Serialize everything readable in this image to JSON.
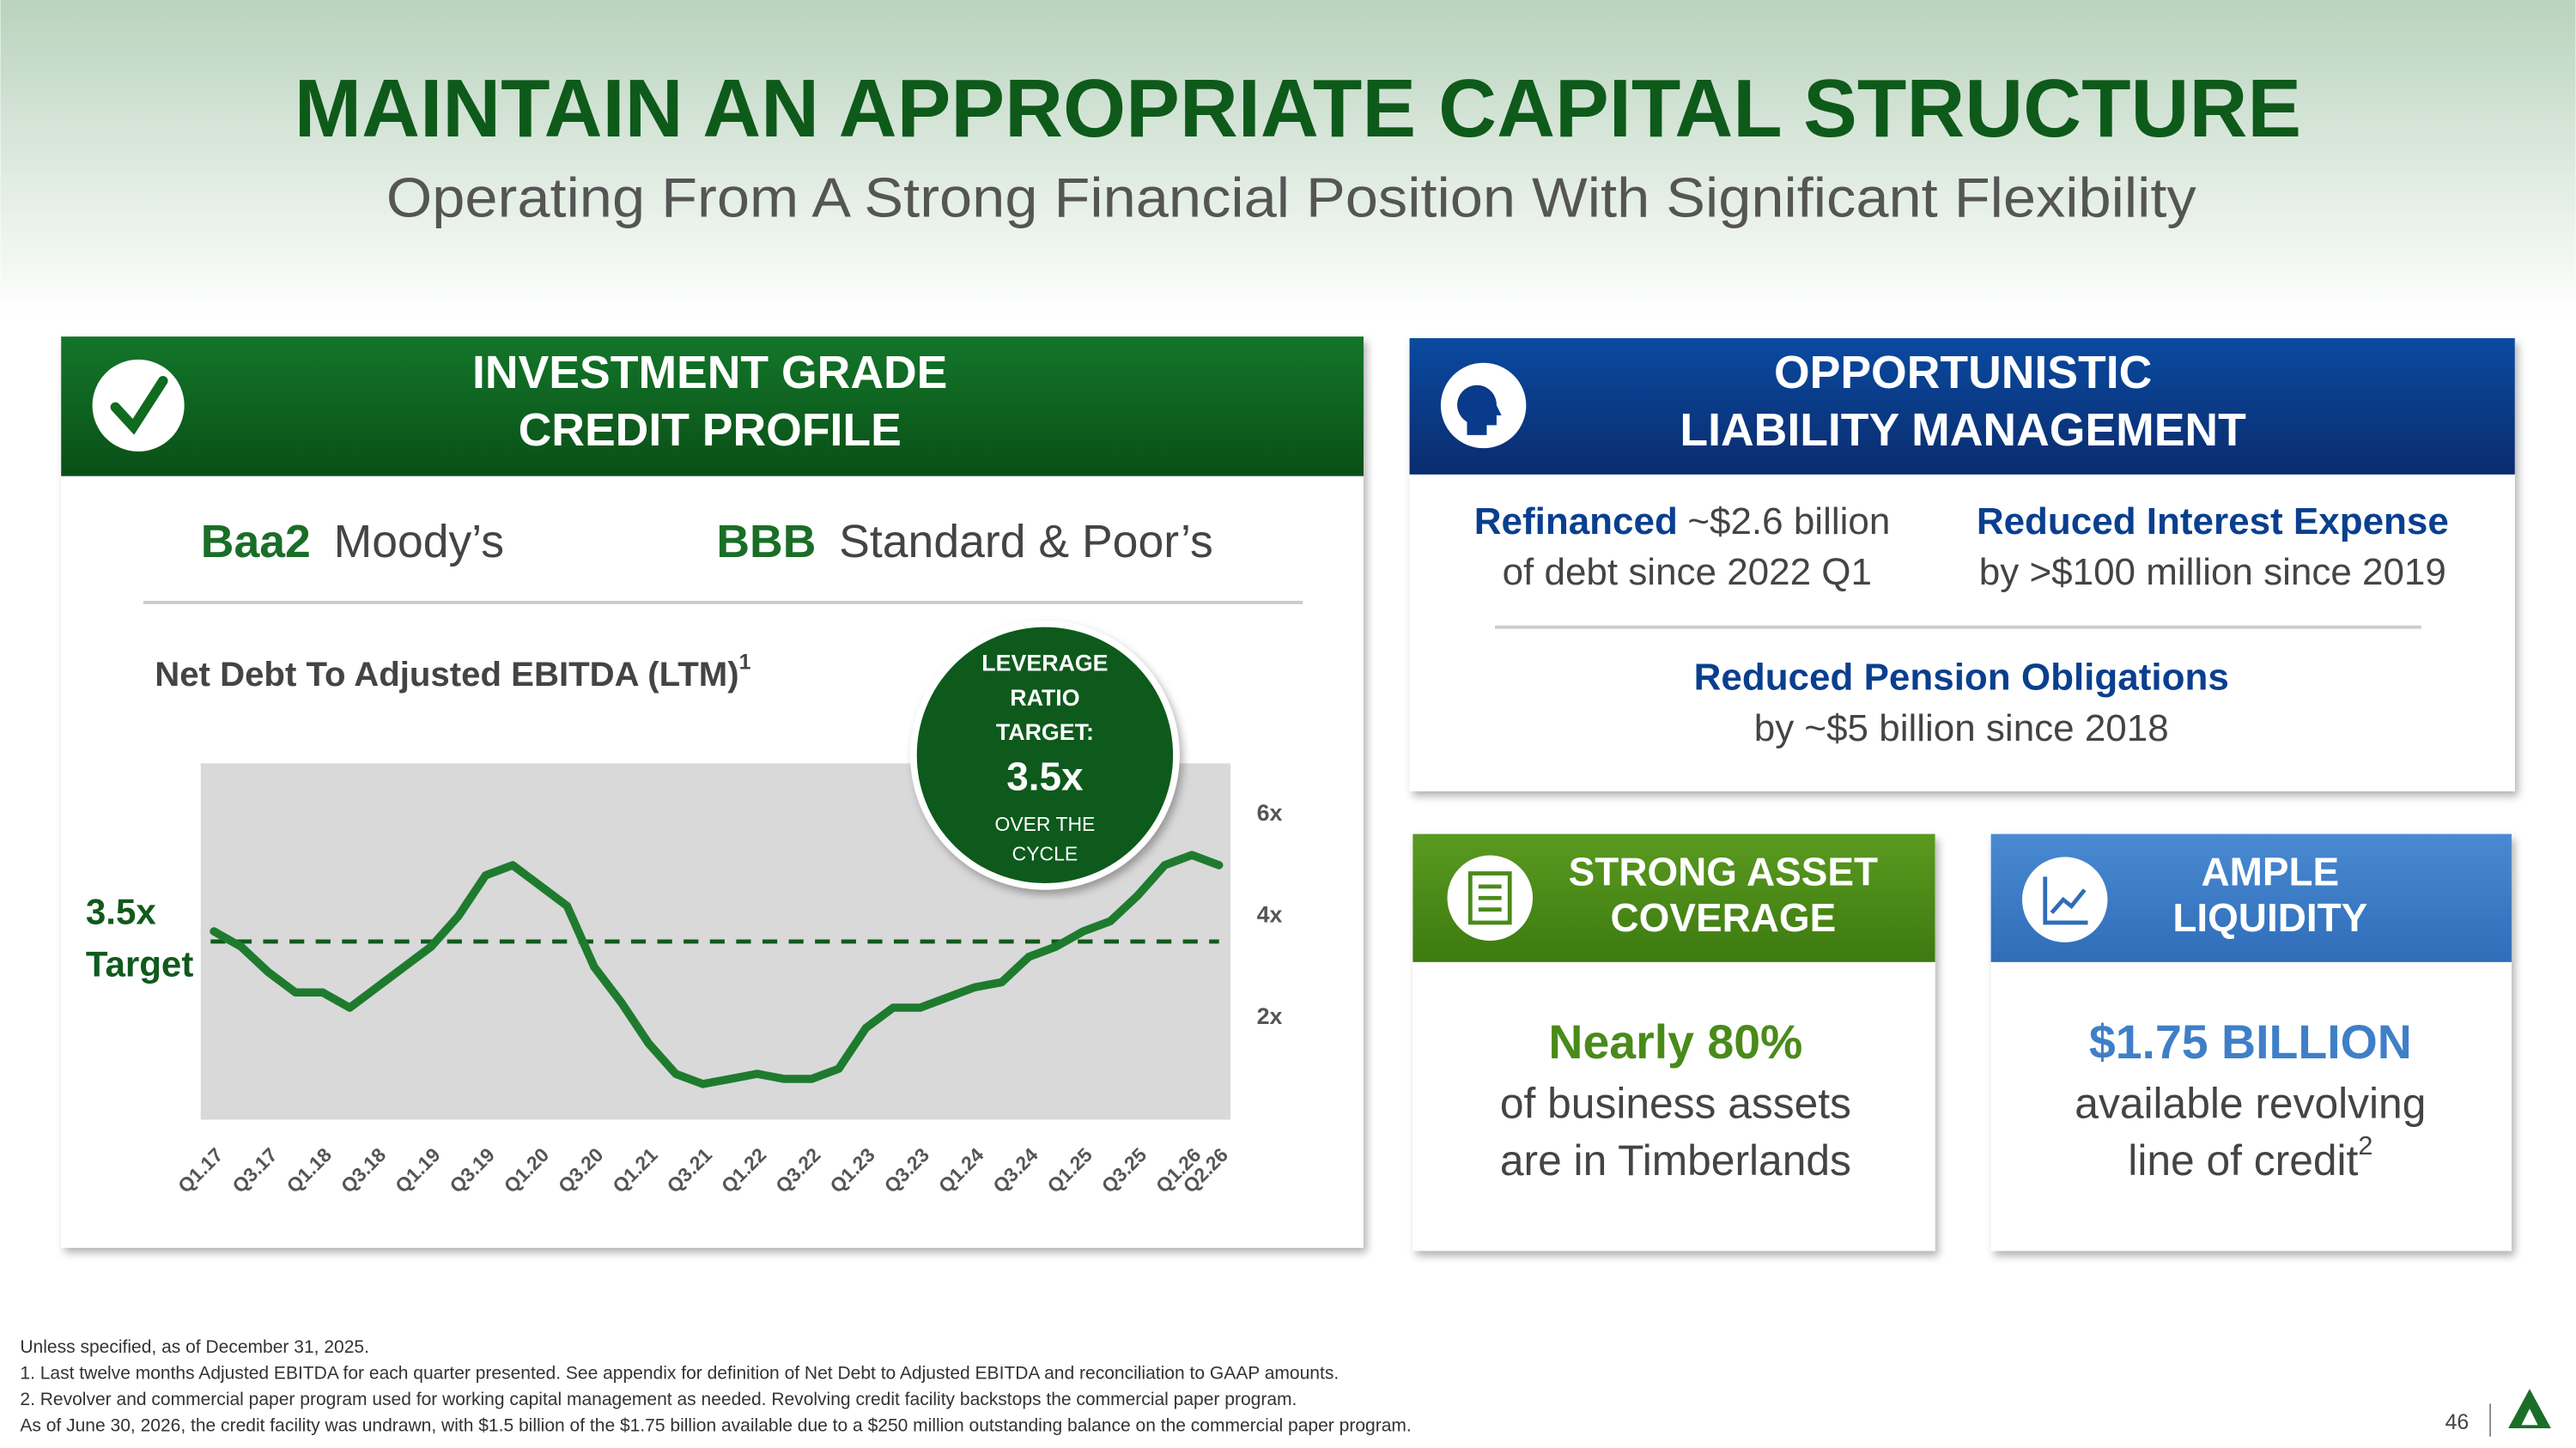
{
  "header": {
    "title": "MAINTAIN AN APPROPRIATE CAPITAL STRUCTURE",
    "subtitle": "Operating From A Strong Financial Position With Significant Flexibility"
  },
  "credit_panel": {
    "title_lines": [
      "INVESTMENT GRADE",
      "CREDIT PROFILE"
    ],
    "ratings": [
      {
        "grade": "Baa2",
        "agency": "Moody’s"
      },
      {
        "grade": "BBB",
        "agency": "Standard & Poor’s"
      }
    ],
    "badge": {
      "lines": [
        "LEVERAGE",
        "RATIO",
        "TARGET:"
      ],
      "value": "3.5x",
      "sub": [
        "OVER THE",
        "CYCLE"
      ]
    }
  },
  "chart_data": {
    "type": "line",
    "title": "Net Debt To Adjusted EBITDA (LTM)",
    "title_note": "1",
    "categories": [
      "Q1.17",
      null,
      "Q3.17",
      null,
      "Q1.18",
      null,
      "Q3.18",
      null,
      "Q1.19",
      null,
      "Q3.19",
      null,
      "Q1.20",
      null,
      "Q3.20",
      null,
      "Q1.21",
      null,
      "Q3.21",
      null,
      "Q1.22",
      null,
      "Q3.22",
      null,
      "Q1.23",
      null,
      "Q3.23",
      null,
      "Q1.24",
      null,
      "Q3.24",
      null,
      "Q1.25",
      null,
      "Q3.25",
      null,
      "Q1.26",
      "Q2.26"
    ],
    "values": [
      3.7,
      3.4,
      2.9,
      2.5,
      2.5,
      2.2,
      2.6,
      3.0,
      3.4,
      4.0,
      4.8,
      5.0,
      4.6,
      4.2,
      3.0,
      2.3,
      1.5,
      0.9,
      0.7,
      0.8,
      0.9,
      0.8,
      0.8,
      1.0,
      1.8,
      2.2,
      2.2,
      2.4,
      2.6,
      2.7,
      3.2,
      3.4,
      3.7,
      3.9,
      4.4,
      5.0,
      5.2,
      5.0
    ],
    "color": "#1e7b2e",
    "ylim": [
      0,
      7
    ],
    "yticks": [
      {
        "value": 2,
        "label": "2x"
      },
      {
        "value": 4,
        "label": "4x"
      },
      {
        "value": 6,
        "label": "6x"
      }
    ],
    "grid": false,
    "target": {
      "value": 3.5,
      "label": "3.5x",
      "caption": "Target",
      "color": "#0f5a1c"
    }
  },
  "liability_panel": {
    "title_lines": [
      "OPPORTUNISTIC",
      "LIABILITY MANAGEMENT"
    ],
    "items": [
      {
        "head": "Refinanced",
        "rest": "~$2.6 billion",
        "line2": "of debt since 2022 Q1"
      },
      {
        "head": "Reduced Interest Expense",
        "line2": "by >$100 million since 2019"
      },
      {
        "head": "Reduced Pension Obligations",
        "line2": "by ~$5 billion since 2018"
      }
    ]
  },
  "asset_panel": {
    "title_lines": [
      "STRONG ASSET",
      "COVERAGE"
    ],
    "highlight": "Nearly 80%",
    "lines": [
      "of business assets",
      "are in Timberlands"
    ]
  },
  "liquidity_panel": {
    "title_lines": [
      "AMPLE",
      "LIQUIDITY"
    ],
    "highlight": "$1.75 BILLION",
    "lines": [
      "available revolving",
      "line of credit"
    ],
    "note": "2"
  },
  "footnotes": [
    "Unless specified, as of December 31, 2025.",
    "1. Last twelve months Adjusted EBITDA for each quarter presented. See appendix for definition of Net Debt to Adjusted EBITDA and reconciliation to GAAP amounts.",
    "2. Revolver and commercial paper program used for working capital management as needed. Revolving credit facility backstops the commercial paper program.",
    "As of June 30, 2026, the credit facility was undrawn, with $1.5 billion of the $1.75 billion available due to a $250 million outstanding balance on the commercial paper program."
  ],
  "page_number": "46"
}
